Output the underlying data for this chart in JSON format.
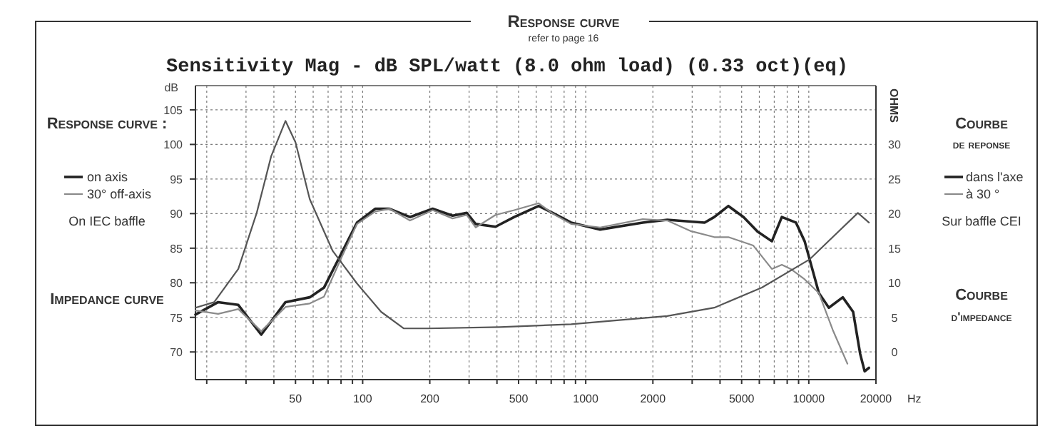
{
  "chart_data": {
    "type": "line",
    "title": "Sensitivity Mag - dB SPL/watt (8.0 ohm load) (0.33 oct)(eq)",
    "ylabel": "dB",
    "xlabel": "Hz",
    "y2label": "OHMS",
    "annotations": [
      "Response curve",
      "refer to page 16",
      "Response curve :",
      "On IEC baffle",
      "Impedance curve",
      "Courbe",
      "de reponse",
      "dans l'axe",
      "à 30 °",
      "Sur baffle CEI",
      "Courbe",
      "d'impedance"
    ],
    "log": "x",
    "grid": true,
    "legend": "left",
    "marker": "none",
    "line_style": "solid",
    "xlim": [
      17.8,
      20000
    ],
    "xticks": [
      {
        "value": 20,
        "label": null
      },
      {
        "value": 30,
        "label": null
      },
      {
        "value": 40,
        "label": null
      },
      50,
      {
        "value": 60,
        "label": null
      },
      {
        "value": 70,
        "label": null
      },
      {
        "value": 80,
        "label": null
      },
      {
        "value": 90,
        "label": null
      },
      100,
      200,
      {
        "value": 300,
        "label": null
      },
      {
        "value": 400,
        "label": null
      },
      500,
      {
        "value": 600,
        "label": null
      },
      {
        "value": 700,
        "label": null
      },
      {
        "value": 800,
        "label": null
      },
      {
        "value": 900,
        "label": null
      },
      1000,
      2000,
      {
        "value": 3000,
        "label": null
      },
      {
        "value": 4000,
        "label": null
      },
      5000,
      {
        "value": 6000,
        "label": null
      },
      {
        "value": 7000,
        "label": null
      },
      {
        "value": 8000,
        "label": null
      },
      {
        "value": 9000,
        "label": null
      },
      10000,
      20000
    ],
    "ylim": [
      66,
      108.5
    ],
    "yticks": [
      70,
      75,
      80,
      85,
      90,
      95,
      100,
      105
    ],
    "y2lim": [
      -4,
      38.5
    ],
    "y2ticks": [
      0,
      5,
      10,
      15,
      20,
      25,
      30
    ],
    "series": [
      {
        "name": "on axis",
        "color": "#222222",
        "x": [
          17.8,
          22.5,
          27.7,
          35.1,
          45.1,
          57.9,
          67.1,
          81.3,
          94.3,
          114,
          132,
          163,
          206,
          253,
          293,
          321,
          394,
          478,
          615,
          711,
          860,
          1160,
          1800,
          2320,
          3410,
          3770,
          4360,
          5100,
          5890,
          6830,
          7570,
          8760,
          9580,
          11100,
          12300,
          14200,
          15800,
          17000,
          17800,
          18600
        ],
        "values": [
          75.4,
          77.2,
          76.8,
          72.5,
          77.2,
          77.9,
          79.3,
          84.6,
          88.7,
          90.7,
          90.7,
          89.5,
          90.7,
          89.7,
          90.1,
          88.5,
          88.1,
          89.5,
          91.1,
          90.1,
          88.7,
          87.7,
          88.7,
          89.1,
          88.7,
          89.5,
          91.1,
          89.5,
          87.4,
          86.0,
          89.5,
          88.7,
          86.0,
          78.5,
          76.4,
          77.9,
          75.8,
          69.7,
          67.2,
          67.7
        ]
      },
      {
        "name": "30° off-axis",
        "color": "#8a8a8a",
        "x": [
          17.8,
          22.5,
          27.7,
          35.1,
          45.1,
          57.9,
          67.1,
          81.3,
          94.3,
          114,
          132,
          163,
          206,
          253,
          293,
          321,
          394,
          478,
          615,
          711,
          860,
          1160,
          1800,
          2320,
          2940,
          3770,
          4360,
          5630,
          6830,
          7570,
          8300,
          9580,
          11100,
          12800,
          14900
        ],
        "values": [
          76.0,
          75.5,
          76.2,
          73.0,
          76.5,
          77.0,
          78.0,
          84.0,
          88.5,
          90.3,
          90.7,
          89.0,
          90.5,
          89.3,
          89.8,
          88.0,
          89.8,
          90.5,
          91.5,
          90.0,
          88.5,
          88.0,
          89.2,
          89.0,
          87.5,
          86.6,
          86.6,
          85.4,
          82.0,
          82.6,
          82.0,
          80.5,
          78.5,
          73.2,
          68.3
        ]
      },
      {
        "color": "#555555",
        "axis": "y2",
        "x": [
          17.8,
          21.6,
          27.7,
          33.5,
          38.9,
          45.1,
          50,
          57.9,
          73.4,
          94.3,
          121,
          153,
          197,
          412,
          860,
          2320,
          3770,
          6160,
          10100,
          12800,
          16600,
          18600
        ],
        "values": [
          6.4,
          7.2,
          12.0,
          20.1,
          28.3,
          33.4,
          30.3,
          22.1,
          14.6,
          9.9,
          5.8,
          3.4,
          3.4,
          3.6,
          4.0,
          5.2,
          6.4,
          9.3,
          13.4,
          16.6,
          20.1,
          18.7
        ]
      }
    ]
  }
}
